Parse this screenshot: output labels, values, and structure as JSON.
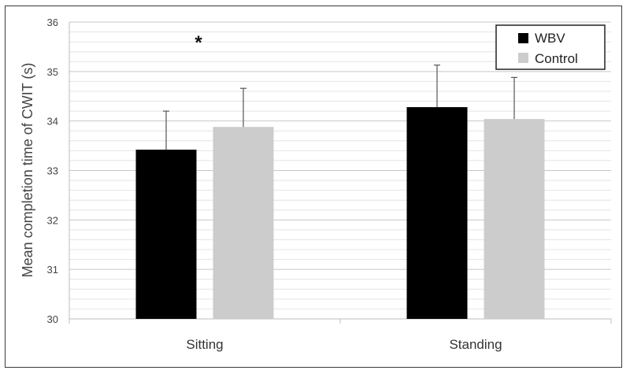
{
  "chart_data": {
    "type": "bar",
    "categories": [
      "Sitting",
      "Standing"
    ],
    "series": [
      {
        "name": "WBV",
        "color": "#000000",
        "values": [
          33.42,
          34.28
        ],
        "errors": [
          0.78,
          0.85
        ]
      },
      {
        "name": "Control",
        "color": "#cccccc",
        "values": [
          33.88,
          34.04
        ],
        "errors": [
          0.78,
          0.84
        ]
      }
    ],
    "ylabel": "Mean completion time of CWIT (s)",
    "ylim": [
      30,
      36
    ],
    "yticks": [
      30,
      31,
      32,
      33,
      34,
      35,
      36
    ],
    "minor_grid_step": 0.2,
    "grid": true,
    "legend_position": "top-right",
    "annotations": [
      {
        "text": "*",
        "category": "Sitting"
      }
    ]
  }
}
